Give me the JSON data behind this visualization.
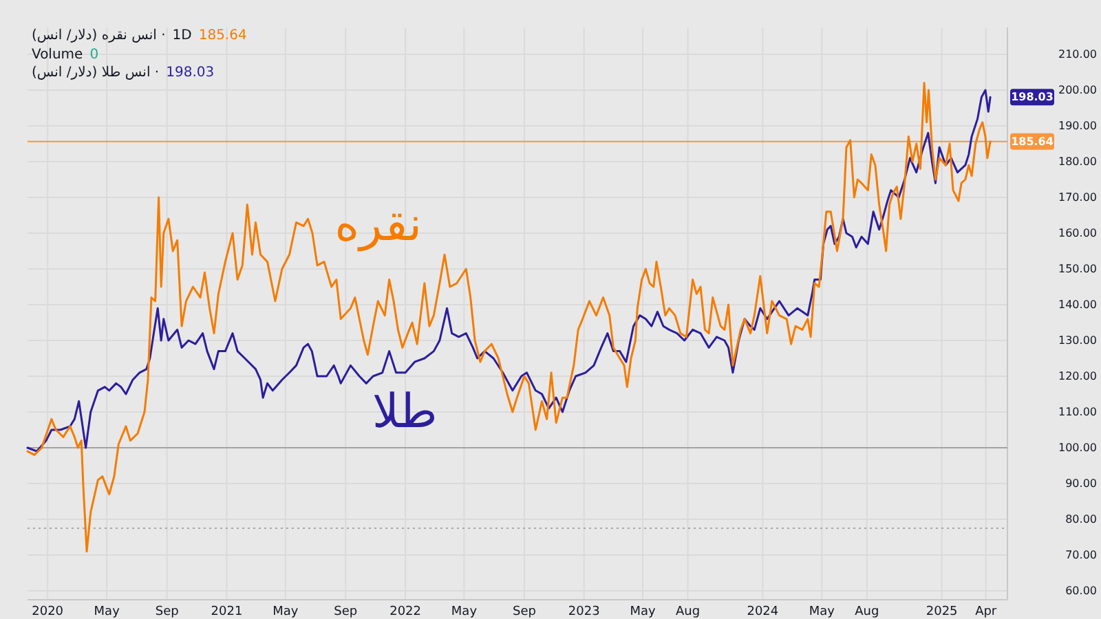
{
  "chart_data": {
    "type": "line",
    "title": "انس نقره (دلار/ انس) ·",
    "annotations": [
      "1D",
      "185.64",
      "Volume",
      "0",
      "انس طلا (دلار/ انس) ·",
      "198.03",
      {
        "text": "198.03",
        "x": "2025-04-10",
        "y": 198.03
      }
    ],
    "xlim": [
      "2019-11-21",
      "2025-05-15"
    ],
    "xticks": [
      {
        "value": "2020-01-01",
        "label": "2020"
      },
      {
        "value": "2020-05-01",
        "label": "May"
      },
      {
        "value": "2020-09-01",
        "label": "Sep"
      },
      {
        "value": "2021-01-01",
        "label": "2021"
      },
      {
        "value": "2021-05-01",
        "label": "May"
      },
      {
        "value": "2021-09-01",
        "label": "Sep"
      },
      {
        "value": "2022-01-01",
        "label": "2022"
      },
      {
        "value": "2022-05-01",
        "label": "May"
      },
      {
        "value": "2022-09-01",
        "label": "Sep"
      },
      {
        "value": "2023-01-01",
        "label": "2023"
      },
      {
        "value": "2023-05-01",
        "label": "May"
      },
      {
        "value": "2023-08-01",
        "label": "Aug"
      },
      {
        "value": "2024-01-01",
        "label": "2024"
      },
      {
        "value": "2024-05-01",
        "label": "May"
      },
      {
        "value": "2024-08-01",
        "label": "Aug"
      },
      {
        "value": "2025-01-01",
        "label": "2025"
      },
      {
        "value": "2025-04-01",
        "label": "Apr"
      }
    ],
    "ylim": [
      57.5,
      217.5
    ],
    "yticks": [
      {
        "value": 60,
        "label": "60.00"
      },
      {
        "value": 70,
        "label": "70.00"
      },
      {
        "value": 80,
        "label": "80.00"
      },
      {
        "value": 90,
        "label": "90.00"
      },
      {
        "value": 100,
        "label": "100.00"
      },
      {
        "value": 110,
        "label": "110.00"
      },
      {
        "value": 120,
        "label": "120.00"
      },
      {
        "value": 130,
        "label": "130.00"
      },
      {
        "value": 140,
        "label": "140.00"
      },
      {
        "value": 150,
        "label": "150.00"
      },
      {
        "value": 160,
        "label": "160.00"
      },
      {
        "value": 170,
        "label": "170.00"
      },
      {
        "value": 180,
        "label": "180.00"
      },
      {
        "value": 190,
        "label": "190.00"
      },
      {
        "value": 200,
        "label": "200.00"
      },
      {
        "value": 210,
        "label": "210.00"
      }
    ],
    "grid": true,
    "ref_lines": [
      {
        "axis": "y",
        "value": 100,
        "color": "#a3a3a3",
        "line_style": "solid"
      },
      {
        "axis": "y",
        "value": 77.5,
        "color": "#a8a8a8",
        "line_style": "dotted"
      },
      {
        "axis": "y",
        "value": 185.64,
        "label": "185.64",
        "color": "#f7963f",
        "line_style": "solid"
      }
    ],
    "series": [
      {
        "name": "نقره",
        "color": "#f57c00",
        "x": [
          "2019-11-21",
          "2019-12-05",
          "2019-12-20",
          "2020-01-09",
          "2020-01-18",
          "2020-02-02",
          "2020-02-16",
          "2020-02-25",
          "2020-03-03",
          "2020-03-10",
          "2020-03-14",
          "2020-03-21",
          "2020-03-29",
          "2020-04-13",
          "2020-04-22",
          "2020-05-06",
          "2020-05-16",
          "2020-05-25",
          "2020-06-09",
          "2020-06-18",
          "2020-07-03",
          "2020-07-17",
          "2020-07-24",
          "2020-07-31",
          "2020-08-08",
          "2020-08-15",
          "2020-08-20",
          "2020-08-25",
          "2020-09-04",
          "2020-09-13",
          "2020-09-22",
          "2020-10-01",
          "2020-10-10",
          "2020-10-24",
          "2020-11-08",
          "2020-11-17",
          "2020-11-27",
          "2020-12-06",
          "2020-12-15",
          "2020-12-29",
          "2021-01-13",
          "2021-01-23",
          "2021-02-02",
          "2021-02-12",
          "2021-02-22",
          "2021-03-01",
          "2021-03-11",
          "2021-03-25",
          "2021-04-10",
          "2021-04-24",
          "2021-05-09",
          "2021-05-23",
          "2021-06-07",
          "2021-06-16",
          "2021-06-25",
          "2021-07-05",
          "2021-07-19",
          "2021-08-03",
          "2021-08-13",
          "2021-08-22",
          "2021-09-11",
          "2021-09-20",
          "2021-09-29",
          "2021-10-08",
          "2021-10-16",
          "2021-10-27",
          "2021-11-06",
          "2021-11-20",
          "2021-11-29",
          "2021-12-08",
          "2021-12-17",
          "2021-12-26",
          "2022-01-06",
          "2022-01-15",
          "2022-01-25",
          "2022-02-09",
          "2022-02-19",
          "2022-02-28",
          "2022-03-12",
          "2022-03-22",
          "2022-04-02",
          "2022-04-16",
          "2022-05-05",
          "2022-05-14",
          "2022-05-23",
          "2022-06-03",
          "2022-06-12",
          "2022-06-26",
          "2022-07-10",
          "2022-07-19",
          "2022-07-28",
          "2022-08-08",
          "2022-08-17",
          "2022-09-01",
          "2022-09-10",
          "2022-09-24",
          "2022-10-07",
          "2022-10-17",
          "2022-10-26",
          "2022-11-05",
          "2022-11-18",
          "2022-11-27",
          "2022-12-11",
          "2022-12-20",
          "2022-12-29",
          "2023-01-12",
          "2023-01-26",
          "2023-02-09",
          "2023-02-22",
          "2023-03-02",
          "2023-03-15",
          "2023-03-24",
          "2023-03-30",
          "2023-04-07",
          "2023-04-16",
          "2023-04-20",
          "2023-04-29",
          "2023-05-07",
          "2023-05-15",
          "2023-05-23",
          "2023-05-29",
          "2023-06-08",
          "2023-06-16",
          "2023-06-24",
          "2023-07-06",
          "2023-07-17",
          "2023-07-29",
          "2023-08-11",
          "2023-08-19",
          "2023-08-27",
          "2023-09-05",
          "2023-09-13",
          "2023-09-21",
          "2023-09-29",
          "2023-10-07",
          "2023-10-15",
          "2023-10-23",
          "2023-11-01",
          "2023-11-09",
          "2023-11-17",
          "2023-11-25",
          "2023-12-07",
          "2023-12-15",
          "2023-12-27",
          "2024-01-10",
          "2024-01-20",
          "2024-02-04",
          "2024-02-19",
          "2024-02-28",
          "2024-03-08",
          "2024-03-22",
          "2024-04-02",
          "2024-04-08",
          "2024-04-16",
          "2024-04-25",
          "2024-05-04",
          "2024-05-10",
          "2024-05-19",
          "2024-06-01",
          "2024-06-13",
          "2024-06-20",
          "2024-06-28",
          "2024-07-06",
          "2024-07-13",
          "2024-07-21",
          "2024-08-03",
          "2024-08-10",
          "2024-08-18",
          "2024-08-26",
          "2024-09-04",
          "2024-09-09",
          "2024-09-16",
          "2024-09-23",
          "2024-10-01",
          "2024-10-09",
          "2024-10-17",
          "2024-10-25",
          "2024-11-02",
          "2024-11-10",
          "2024-11-18",
          "2024-11-26",
          "2024-12-01",
          "2024-12-05",
          "2024-12-12",
          "2024-12-19",
          "2024-12-27",
          "2025-01-09",
          "2025-01-17",
          "2025-01-24",
          "2025-02-04",
          "2025-02-10",
          "2025-02-18",
          "2025-02-25",
          "2025-03-03",
          "2025-03-11",
          "2025-03-19",
          "2025-03-25",
          "2025-03-31",
          "2025-04-04",
          "2025-04-10"
        ],
        "values": [
          99,
          98,
          100,
          108,
          105,
          103,
          106,
          103,
          100,
          102,
          89,
          71,
          82,
          91,
          92,
          87,
          92,
          101,
          106,
          102,
          104,
          110,
          119,
          142,
          141,
          170,
          145,
          160,
          164,
          155,
          158,
          134,
          141,
          145,
          142,
          149,
          139,
          132,
          143,
          152,
          160,
          147,
          151,
          168,
          154,
          163,
          154,
          152,
          141,
          150,
          154,
          163,
          162,
          164,
          160,
          151,
          152,
          145,
          147,
          136,
          139,
          142,
          136,
          130,
          126,
          134,
          141,
          137,
          147,
          141,
          133,
          128,
          132,
          135,
          129,
          146,
          134,
          137,
          146,
          154,
          145,
          146,
          150,
          142,
          130,
          124,
          127,
          129,
          125,
          120,
          115,
          110,
          114,
          120,
          118,
          105,
          113,
          108,
          121,
          107,
          114,
          114,
          123,
          133,
          136,
          141,
          137,
          142,
          137,
          128,
          125,
          123,
          117,
          125,
          130,
          139,
          147,
          150,
          146,
          145,
          152,
          144,
          137,
          139,
          137,
          132,
          131,
          147,
          143,
          145,
          133,
          132,
          142,
          138,
          134,
          133,
          140,
          123,
          128,
          133,
          136,
          132,
          137,
          148,
          132,
          141,
          137,
          136,
          129,
          134,
          133,
          136,
          131,
          146,
          145,
          157,
          166,
          166,
          155,
          164,
          184,
          186,
          170,
          175,
          174,
          172,
          182,
          179,
          168,
          160,
          155,
          168,
          171,
          173,
          164,
          174,
          187,
          180,
          185,
          178,
          202,
          191,
          200,
          184,
          175,
          181,
          179,
          185,
          172,
          169,
          174,
          175,
          179,
          176,
          185,
          189,
          191,
          187,
          181,
          185.64
        ]
      },
      {
        "name": "طلا",
        "color": "#2c1e9c",
        "x": [
          "2019-11-21",
          "2019-12-10",
          "2019-12-29",
          "2020-01-09",
          "2020-01-27",
          "2020-02-16",
          "2020-02-25",
          "2020-03-05",
          "2020-03-19",
          "2020-03-29",
          "2020-04-13",
          "2020-04-27",
          "2020-05-06",
          "2020-05-20",
          "2020-05-30",
          "2020-06-09",
          "2020-06-23",
          "2020-07-07",
          "2020-07-21",
          "2020-07-28",
          "2020-08-06",
          "2020-08-13",
          "2020-08-20",
          "2020-08-25",
          "2020-09-04",
          "2020-09-22",
          "2020-10-01",
          "2020-10-15",
          "2020-10-29",
          "2020-11-13",
          "2020-11-22",
          "2020-12-06",
          "2020-12-15",
          "2020-12-29",
          "2021-01-13",
          "2021-01-23",
          "2021-02-07",
          "2021-03-01",
          "2021-03-11",
          "2021-03-16",
          "2021-03-25",
          "2021-04-05",
          "2021-04-24",
          "2021-05-09",
          "2021-05-23",
          "2021-06-07",
          "2021-06-16",
          "2021-06-24",
          "2021-07-05",
          "2021-07-24",
          "2021-08-08",
          "2021-08-17",
          "2021-08-22",
          "2021-09-11",
          "2021-09-29",
          "2021-10-13",
          "2021-10-27",
          "2021-11-15",
          "2021-11-29",
          "2021-12-13",
          "2022-01-01",
          "2022-01-20",
          "2022-02-09",
          "2022-02-28",
          "2022-03-12",
          "2022-03-27",
          "2022-04-06",
          "2022-04-20",
          "2022-05-05",
          "2022-05-19",
          "2022-05-28",
          "2022-06-12",
          "2022-06-30",
          "2022-07-19",
          "2022-08-08",
          "2022-08-26",
          "2022-09-06",
          "2022-09-24",
          "2022-10-07",
          "2022-10-21",
          "2022-11-05",
          "2022-11-18",
          "2022-12-02",
          "2022-12-15",
          "2023-01-04",
          "2023-01-21",
          "2023-02-05",
          "2023-02-18",
          "2023-03-02",
          "2023-03-15",
          "2023-03-28",
          "2023-04-12",
          "2023-04-25",
          "2023-05-07",
          "2023-05-19",
          "2023-05-31",
          "2023-06-12",
          "2023-06-24",
          "2023-07-10",
          "2023-07-25",
          "2023-08-11",
          "2023-08-27",
          "2023-09-13",
          "2023-09-29",
          "2023-10-15",
          "2023-10-23",
          "2023-11-01",
          "2023-11-13",
          "2023-11-25",
          "2023-12-07",
          "2023-12-15",
          "2023-12-27",
          "2024-01-10",
          "2024-01-25",
          "2024-02-04",
          "2024-02-23",
          "2024-03-12",
          "2024-04-02",
          "2024-04-11",
          "2024-04-16",
          "2024-04-28",
          "2024-05-04",
          "2024-05-12",
          "2024-05-19",
          "2024-05-27",
          "2024-06-05",
          "2024-06-13",
          "2024-06-20",
          "2024-07-02",
          "2024-07-10",
          "2024-07-21",
          "2024-08-03",
          "2024-08-14",
          "2024-08-26",
          "2024-09-04",
          "2024-09-12",
          "2024-09-19",
          "2024-10-05",
          "2024-10-17",
          "2024-10-28",
          "2024-11-10",
          "2024-11-22",
          "2024-12-04",
          "2024-12-12",
          "2024-12-19",
          "2024-12-27",
          "2025-01-09",
          "2025-01-20",
          "2025-02-02",
          "2025-02-18",
          "2025-02-25",
          "2025-03-03",
          "2025-03-15",
          "2025-03-23",
          "2025-03-31",
          "2025-04-06",
          "2025-04-10"
        ],
        "values": [
          100,
          99,
          102,
          105,
          105,
          106,
          108,
          113,
          100,
          110,
          116,
          117,
          116,
          118,
          117,
          115,
          119,
          121,
          122,
          125,
          133,
          139,
          130,
          136,
          130,
          133,
          128,
          130,
          129,
          132,
          127,
          122,
          127,
          127,
          132,
          127,
          125,
          122,
          119,
          114,
          118,
          116,
          119,
          121,
          123,
          128,
          129,
          127,
          120,
          120,
          123,
          120,
          118,
          123,
          120,
          118,
          120,
          121,
          127,
          121,
          121,
          124,
          125,
          127,
          130,
          139,
          132,
          131,
          132,
          128,
          125,
          127,
          125,
          121,
          116,
          120,
          121,
          116,
          115,
          111,
          114,
          110,
          116,
          120,
          121,
          123,
          128,
          132,
          127,
          127,
          124,
          134,
          137,
          136,
          134,
          138,
          134,
          133,
          132,
          130,
          133,
          132,
          128,
          131,
          130,
          128,
          121,
          130,
          136,
          134,
          133,
          139,
          136,
          139,
          141,
          137,
          139,
          137,
          143,
          147,
          147,
          157,
          161,
          162,
          157,
          159,
          164,
          160,
          159,
          156,
          159,
          157,
          166,
          161,
          165,
          169,
          172,
          170,
          175,
          181,
          177,
          183,
          188,
          180,
          174,
          184,
          179,
          181,
          177,
          179,
          182,
          187,
          192,
          198,
          200,
          194,
          198.03
        ]
      }
    ]
  }
}
